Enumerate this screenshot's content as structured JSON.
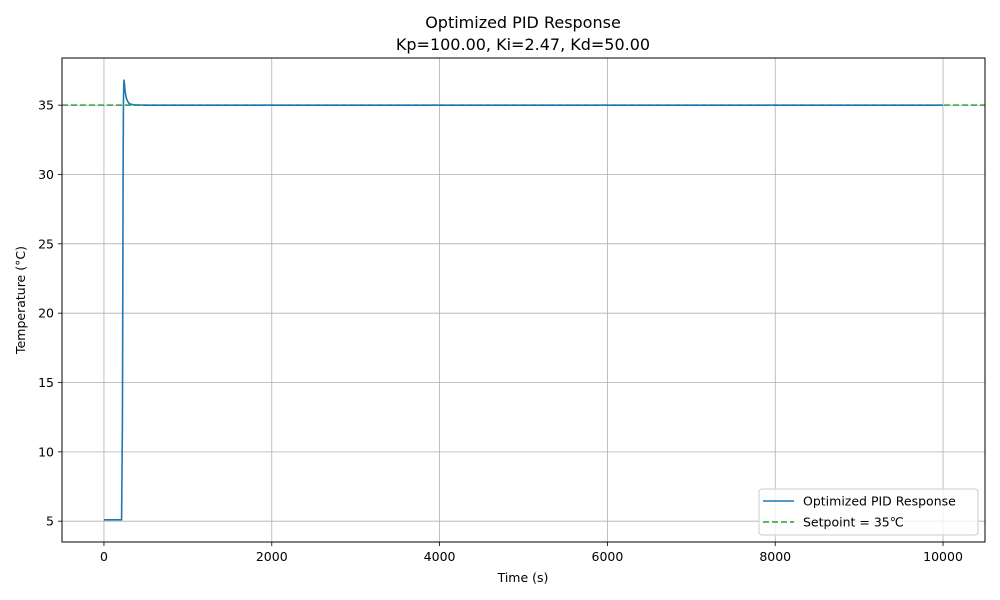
{
  "chart_data": {
    "type": "line",
    "title": "Optimized PID Response",
    "subtitle": "Kp=100.00, Ki=2.47, Kd=50.00",
    "xlabel": "Time (s)",
    "ylabel": "Temperature (°C)",
    "xlim": [
      -500,
      10500
    ],
    "ylim": [
      3.5,
      38.4
    ],
    "xticks": [
      0,
      2000,
      4000,
      6000,
      8000,
      10000
    ],
    "yticks": [
      5,
      10,
      15,
      20,
      25,
      30,
      35
    ],
    "xtick_labels": [
      "0",
      "2000",
      "4000",
      "6000",
      "8000",
      "10000"
    ],
    "ytick_labels": [
      "5",
      "10",
      "15",
      "20",
      "25",
      "30",
      "35"
    ],
    "grid": true,
    "legend_position": "bottom-right",
    "series": [
      {
        "name": "Optimized PID Response",
        "color": "#1f77b4",
        "style": "solid",
        "x": [
          0,
          100,
          210,
          220,
          225,
          228,
          232,
          236,
          240,
          245,
          250,
          260,
          270,
          285,
          300,
          330,
          370,
          420,
          500,
          700,
          1000,
          2000,
          4000,
          6000,
          8000,
          10000
        ],
        "y": [
          5.1,
          5.1,
          5.1,
          12.0,
          22.0,
          30.0,
          35.0,
          36.5,
          36.8,
          36.5,
          36.1,
          35.7,
          35.45,
          35.25,
          35.12,
          35.05,
          35.02,
          35.01,
          35.0,
          35.0,
          35.0,
          35.0,
          35.0,
          35.0,
          35.0,
          35.0
        ]
      },
      {
        "name": "Setpoint = 35℃",
        "color": "#2ca02c",
        "style": "dashed",
        "x": [
          -500,
          10500
        ],
        "y": [
          35,
          35
        ]
      }
    ]
  }
}
